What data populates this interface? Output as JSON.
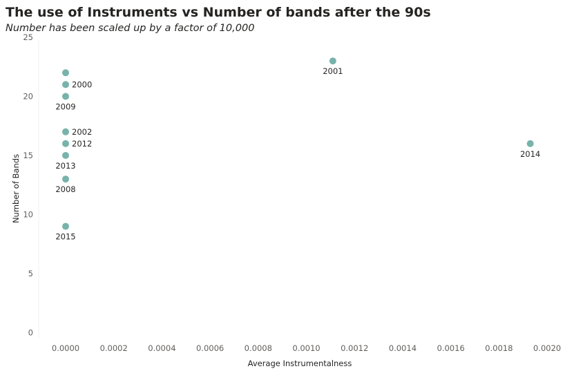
{
  "chart_data": {
    "type": "scatter",
    "title": "The use of Instruments vs Number of bands after the 90s",
    "subtitle": "Number has been scaled up by a factor of 10,000",
    "xlabel": "Average Instrumentalness",
    "ylabel": "Number of Bands",
    "xlim": [
      -0.0001,
      0.00205
    ],
    "ylim": [
      0,
      25
    ],
    "x_ticks": [
      "0.0000",
      "0.0002",
      "0.0004",
      "0.0006",
      "0.0008",
      "0.0010",
      "0.0012",
      "0.0014",
      "0.0016",
      "0.0018",
      "0.0020"
    ],
    "y_ticks": [
      "0",
      "5",
      "10",
      "15",
      "20",
      "25"
    ],
    "grid": false,
    "point_color": "#77b3ab",
    "points": [
      {
        "label": "",
        "x": 0.0,
        "y": 22
      },
      {
        "label": "2000",
        "x": 0.0,
        "y": 21
      },
      {
        "label": "2009",
        "x": 0.0,
        "y": 20
      },
      {
        "label": "2002",
        "x": 0.0,
        "y": 17
      },
      {
        "label": "2012",
        "x": 0.0,
        "y": 16
      },
      {
        "label": "2013",
        "x": 0.0,
        "y": 15
      },
      {
        "label": "2008",
        "x": 0.0,
        "y": 13
      },
      {
        "label": "2015",
        "x": 0.0,
        "y": 9
      },
      {
        "label": "2001",
        "x": 0.00111,
        "y": 23
      },
      {
        "label": "2014",
        "x": 0.00193,
        "y": 16
      }
    ]
  }
}
